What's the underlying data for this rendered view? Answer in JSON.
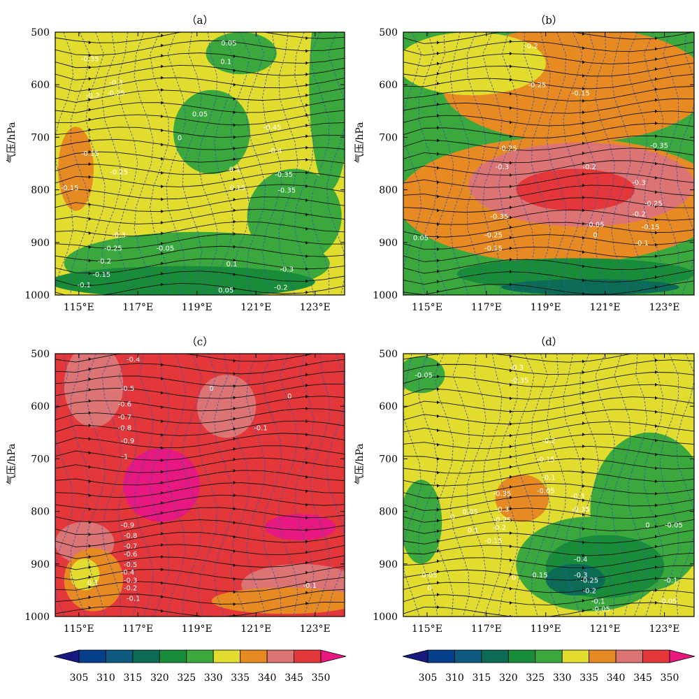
{
  "chart_data": {
    "type": "contour",
    "fill_variable_levels": [
      305,
      310,
      315,
      320,
      325,
      330,
      335,
      340,
      345,
      350
    ],
    "colorbar_colors": [
      "#16197e",
      "#053f8c",
      "#0e5a7f",
      "#0b6b55",
      "#198c3a",
      "#3aa83d",
      "#e2dc2e",
      "#e88a22",
      "#dd7474",
      "#e3373a",
      "#e7187f"
    ],
    "panels": [
      {
        "title": "（a）",
        "ylabel": "气压/hPa",
        "yticks": [
          "500",
          "600",
          "700",
          "800",
          "900",
          "1000"
        ],
        "xticks": [
          "115°E",
          "117°E",
          "119°E",
          "121°E",
          "123°E"
        ],
        "background_level": 330,
        "regions": [
          {
            "level": 325,
            "cx": 119.5,
            "cy": 690,
            "rx": 1.3,
            "ry": 80
          },
          {
            "level": 325,
            "cx": 120.5,
            "cy": 540,
            "rx": 1.2,
            "ry": 40
          },
          {
            "level": 325,
            "cx": 123.5,
            "cy": 600,
            "rx": 0.7,
            "ry": 200
          },
          {
            "level": 325,
            "cx": 122.3,
            "cy": 850,
            "rx": 1.6,
            "ry": 90
          },
          {
            "level": 325,
            "cx": 119.0,
            "cy": 940,
            "rx": 4.5,
            "ry": 60
          },
          {
            "level": 320,
            "cx": 118.5,
            "cy": 975,
            "rx": 4.5,
            "ry": 30
          },
          {
            "level": 335,
            "cx": 114.9,
            "cy": 760,
            "rx": 0.6,
            "ry": 80
          }
        ],
        "contour_labels": [
          "0.05",
          "0.1",
          "-0.35",
          "-0.3",
          "-0.25",
          "-0.2",
          "0.05",
          "0",
          "-0.45",
          "-0.4",
          "-0.15",
          "-0.25",
          "0.1",
          "-0.35",
          "-0.15",
          "0.15",
          "-0.35",
          "-0.3",
          "-0.25",
          "-0.05",
          "-0.2",
          "-0.15",
          "0.1",
          "-0.3",
          "-0.1",
          "0.05",
          "-0.2"
        ]
      },
      {
        "title": "（b）",
        "ylabel": "气压/hPa",
        "yticks": [
          "500",
          "600",
          "700",
          "800",
          "900",
          "1000"
        ],
        "xticks": [
          "115°E",
          "117°E",
          "119°E",
          "121°E",
          "123°E"
        ],
        "background_level": 325,
        "regions": [
          {
            "level": 335,
            "cx": 120.0,
            "cy": 600,
            "rx": 4.5,
            "ry": 110
          },
          {
            "level": 335,
            "cx": 119.5,
            "cy": 820,
            "rx": 5.5,
            "ry": 120
          },
          {
            "level": 340,
            "cx": 120.2,
            "cy": 790,
            "rx": 3.8,
            "ry": 80
          },
          {
            "level": 345,
            "cx": 120.0,
            "cy": 800,
            "rx": 2.0,
            "ry": 40
          },
          {
            "level": 330,
            "cx": 116.5,
            "cy": 560,
            "rx": 2.5,
            "ry": 60
          },
          {
            "level": 320,
            "cx": 120.0,
            "cy": 960,
            "rx": 4.0,
            "ry": 30
          },
          {
            "level": 315,
            "cx": 120.5,
            "cy": 985,
            "rx": 3.0,
            "ry": 15
          }
        ],
        "contour_labels": [
          "-0.2",
          "-0.25",
          "-0.15",
          "-0.25",
          "-0.3",
          "-0.35",
          "-0.2",
          "-0.3",
          "-0.35",
          "-0.25",
          "-0.2",
          "-0.15",
          "-0.15",
          "-0.05",
          "-0.25",
          "0",
          "-0.1",
          "0.05"
        ]
      },
      {
        "title": "（c）",
        "ylabel": "气压/hPa",
        "yticks": [
          "500",
          "600",
          "700",
          "800",
          "900",
          "1000"
        ],
        "xticks": [
          "115°E",
          "117°E",
          "119°E",
          "121°E",
          "123°E"
        ],
        "background_level": 345,
        "regions": [
          {
            "level": 340,
            "cx": 115.5,
            "cy": 560,
            "rx": 1.0,
            "ry": 80
          },
          {
            "level": 340,
            "cx": 120.0,
            "cy": 600,
            "rx": 1.0,
            "ry": 60
          },
          {
            "level": 340,
            "cx": 115.2,
            "cy": 860,
            "rx": 1.0,
            "ry": 40
          },
          {
            "level": 340,
            "cx": 122.5,
            "cy": 940,
            "rx": 2.0,
            "ry": 40
          },
          {
            "level": 350,
            "cx": 117.8,
            "cy": 750,
            "rx": 1.3,
            "ry": 70
          },
          {
            "level": 350,
            "cx": 122.5,
            "cy": 830,
            "rx": 1.2,
            "ry": 25
          },
          {
            "level": 335,
            "cx": 115.5,
            "cy": 930,
            "rx": 1.0,
            "ry": 60
          },
          {
            "level": 330,
            "cx": 115.2,
            "cy": 920,
            "rx": 0.5,
            "ry": 30
          },
          {
            "level": 335,
            "cx": 122.0,
            "cy": 970,
            "rx": 2.5,
            "ry": 25
          }
        ],
        "contour_labels": [
          "-0.4",
          "-0.5",
          "-0.6",
          "-0.7",
          "-0.8",
          "-0.9",
          "-1",
          "0",
          "0",
          "-0.1",
          "-0.9",
          "-0.8",
          "-0.7",
          "-0.6",
          "-0.5",
          "-0.4",
          "-0.3",
          "-0.2",
          "-0.1",
          "0.1",
          "-0.1"
        ]
      },
      {
        "title": "（d）",
        "ylabel": "气压/hPa",
        "yticks": [
          "500",
          "600",
          "700",
          "800",
          "900",
          "1000"
        ],
        "xticks": [
          "115°E",
          "117°E",
          "119°E",
          "121°E",
          "123°E"
        ],
        "background_level": 330,
        "regions": [
          {
            "level": 325,
            "cx": 114.8,
            "cy": 540,
            "rx": 0.8,
            "ry": 35
          },
          {
            "level": 325,
            "cx": 122.5,
            "cy": 800,
            "rx": 2.0,
            "ry": 150
          },
          {
            "level": 325,
            "cx": 120.5,
            "cy": 900,
            "rx": 2.5,
            "ry": 90
          },
          {
            "level": 320,
            "cx": 121.0,
            "cy": 905,
            "rx": 2.0,
            "ry": 60
          },
          {
            "level": 315,
            "cx": 120.0,
            "cy": 930,
            "rx": 1.0,
            "ry": 30
          },
          {
            "level": 325,
            "cx": 114.8,
            "cy": 820,
            "rx": 0.7,
            "ry": 80
          },
          {
            "level": 335,
            "cx": 118.2,
            "cy": 775,
            "rx": 0.9,
            "ry": 45
          }
        ],
        "contour_labels": [
          "-0.05",
          "-0.3",
          "-0.35",
          "-0.2",
          "-0.15",
          "-0.1",
          "-0.05",
          "-0.35",
          "-0.3",
          "-0.25",
          "-0.2",
          "-0.15",
          "0",
          "0.05",
          "0.1",
          "-0.3",
          "-0.35",
          "0",
          "-0.05",
          "-0.4",
          "-0.3",
          "-0.25",
          "-0.2",
          "-0.1",
          "-0.05",
          "0.15",
          "0",
          "0.05",
          "0",
          "-0.1",
          "-0.05"
        ]
      }
    ]
  }
}
